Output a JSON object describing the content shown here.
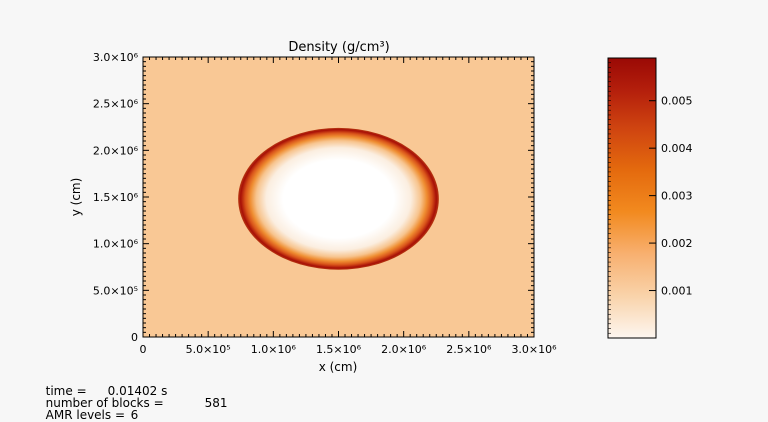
{
  "chart_data": {
    "type": "heatmap",
    "title": "Density (g/cm³)",
    "xlabel": "x (cm)",
    "ylabel": "y (cm)",
    "xlim": [
      0,
      3000000
    ],
    "ylim": [
      0,
      3000000
    ],
    "x_tick_labels": [
      "0",
      "5.0×10⁵",
      "1.0×10⁶",
      "1.5×10⁶",
      "2.0×10⁶",
      "2.5×10⁶",
      "3.0×10⁶"
    ],
    "x_tick_values": [
      0,
      500000,
      1000000,
      1500000,
      2000000,
      2500000,
      3000000
    ],
    "y_tick_labels": [
      "0",
      "5.0×10⁵",
      "1.0×10⁶",
      "1.5×10⁶",
      "2.0×10⁶",
      "2.5×10⁶",
      "3.0×10⁶"
    ],
    "y_tick_values": [
      0,
      500000,
      1000000,
      1500000,
      2000000,
      2500000,
      3000000
    ],
    "field": {
      "ambient_density": 0.0015,
      "ellipse_center": [
        1500000,
        1480000
      ],
      "ellipse_semi_axes": [
        770000,
        760000
      ],
      "interior_density": 0.0001,
      "shell_peak_density": 0.0058
    },
    "colorbar": {
      "range": [
        0,
        0.0059
      ],
      "tick_labels": [
        "0.001",
        "0.002",
        "0.003",
        "0.004",
        "0.005"
      ],
      "tick_values": [
        0.001,
        0.002,
        0.003,
        0.004,
        0.005
      ],
      "colors": [
        "#fdf6f0",
        "#f9d3aa",
        "#f8b070",
        "#f28a1f",
        "#e46a0e",
        "#cf4410",
        "#b5200c",
        "#9a0905"
      ]
    }
  },
  "info": {
    "time_label": "time =",
    "time_value": "0.01402 s",
    "blocks_label": "number of blocks =",
    "blocks_value": "581",
    "levels_label": "AMR levels =",
    "levels_value": "6"
  }
}
